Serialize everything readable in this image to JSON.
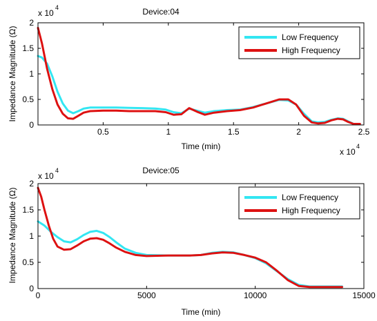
{
  "chart_data": [
    {
      "type": "line",
      "title": "Device:04",
      "xlabel": "Time (min)",
      "ylabel": "Impedance Magnitude (Ω)",
      "xlim": [
        0,
        25000
      ],
      "ylim": [
        0,
        20000
      ],
      "x_ticks": [
        5000,
        10000,
        15000,
        20000,
        25000
      ],
      "x_tick_labels": [
        "0.5",
        "1",
        "1.5",
        "2",
        "2.5"
      ],
      "x_exponent": "x 10",
      "x_exponent_power": "4",
      "y_ticks": [
        0,
        5000,
        10000,
        15000,
        20000
      ],
      "y_tick_labels": [
        "0",
        "0.5",
        "1",
        "1.5",
        "2"
      ],
      "y_exponent": "x 10",
      "y_exponent_power": "4",
      "grid": false,
      "legend_position": "top-right",
      "series": [
        {
          "name": "Low Frequency",
          "color": "#33e6f2",
          "x": [
            0,
            300,
            700,
            1100,
            1500,
            1900,
            2300,
            2700,
            3100,
            3500,
            4000,
            5000,
            6000,
            7000,
            8000,
            9000,
            9800,
            10400,
            11000,
            11600,
            12200,
            12800,
            13500,
            14500,
            15500,
            16500,
            17500,
            18500,
            19200,
            19800,
            20400,
            21000,
            21500,
            22000,
            22500,
            23000,
            23400,
            23800,
            24200,
            24700
          ],
          "values": [
            13500,
            13200,
            12000,
            9500,
            6500,
            4200,
            2800,
            2300,
            2700,
            3200,
            3400,
            3400,
            3400,
            3350,
            3300,
            3200,
            3000,
            2500,
            2300,
            3200,
            2800,
            2400,
            2700,
            2900,
            3000,
            3500,
            4200,
            4900,
            4800,
            4000,
            2200,
            700,
            500,
            600,
            1000,
            1300,
            1200,
            700,
            200,
            200
          ]
        },
        {
          "name": "High Frequency",
          "color": "#dd1111",
          "x": [
            0,
            300,
            700,
            1100,
            1500,
            1900,
            2300,
            2700,
            3100,
            3500,
            4000,
            5000,
            6000,
            7000,
            8000,
            9000,
            9800,
            10400,
            11000,
            11600,
            12200,
            12800,
            13500,
            14500,
            15500,
            16500,
            17500,
            18500,
            19200,
            19800,
            20400,
            21000,
            21500,
            22000,
            22500,
            23000,
            23400,
            23800,
            24200,
            24700
          ],
          "values": [
            19000,
            16000,
            11000,
            7000,
            4000,
            2200,
            1300,
            1200,
            1800,
            2400,
            2700,
            2800,
            2800,
            2700,
            2700,
            2700,
            2500,
            2000,
            2100,
            3300,
            2600,
            2000,
            2400,
            2700,
            2900,
            3400,
            4200,
            5000,
            5000,
            4000,
            1800,
            500,
            300,
            400,
            900,
            1200,
            1100,
            600,
            200,
            200
          ]
        }
      ]
    },
    {
      "type": "line",
      "title": "Device:05",
      "xlabel": "Time (min)",
      "ylabel": "Impedance Magnitude (Ω)",
      "xlim": [
        0,
        15000
      ],
      "ylim": [
        0,
        20000
      ],
      "x_ticks": [
        0,
        5000,
        10000,
        15000
      ],
      "x_tick_labels": [
        "0",
        "5000",
        "10000",
        "15000"
      ],
      "y_ticks": [
        0,
        5000,
        10000,
        15000,
        20000
      ],
      "y_tick_labels": [
        "0",
        "0.5",
        "1",
        "1.5",
        "2"
      ],
      "y_exponent": "x 10",
      "y_exponent_power": "4",
      "grid": false,
      "legend_position": "top-right",
      "series": [
        {
          "name": "Low Frequency",
          "color": "#33e6f2",
          "x": [
            0,
            300,
            600,
            900,
            1200,
            1500,
            1800,
            2100,
            2400,
            2700,
            3000,
            3300,
            3600,
            4000,
            4500,
            5000,
            6000,
            7000,
            7500,
            8000,
            8500,
            9000,
            9500,
            10000,
            10500,
            11000,
            11500,
            12000,
            12500,
            13000,
            13500,
            14000
          ],
          "values": [
            12800,
            12000,
            10800,
            9800,
            9000,
            8800,
            9400,
            10200,
            10800,
            11000,
            10600,
            9800,
            8800,
            7600,
            6800,
            6400,
            6300,
            6300,
            6400,
            6800,
            7000,
            6900,
            6400,
            5800,
            4800,
            3300,
            1800,
            700,
            400,
            400,
            400,
            400
          ]
        },
        {
          "name": "High Frequency",
          "color": "#dd1111",
          "x": [
            0,
            150,
            300,
            500,
            700,
            900,
            1200,
            1500,
            1800,
            2100,
            2400,
            2700,
            3000,
            3300,
            3600,
            4000,
            4500,
            5000,
            6000,
            7000,
            7500,
            8000,
            8500,
            9000,
            9500,
            10000,
            10500,
            11000,
            11500,
            12000,
            12500,
            13000,
            13500,
            14000
          ],
          "values": [
            19200,
            17500,
            15000,
            12000,
            9500,
            8000,
            7400,
            7500,
            8200,
            9000,
            9500,
            9600,
            9300,
            8600,
            7800,
            7000,
            6400,
            6200,
            6300,
            6300,
            6400,
            6700,
            6900,
            6800,
            6400,
            5900,
            5000,
            3400,
            1600,
            500,
            300,
            300,
            300,
            300
          ]
        }
      ]
    }
  ]
}
